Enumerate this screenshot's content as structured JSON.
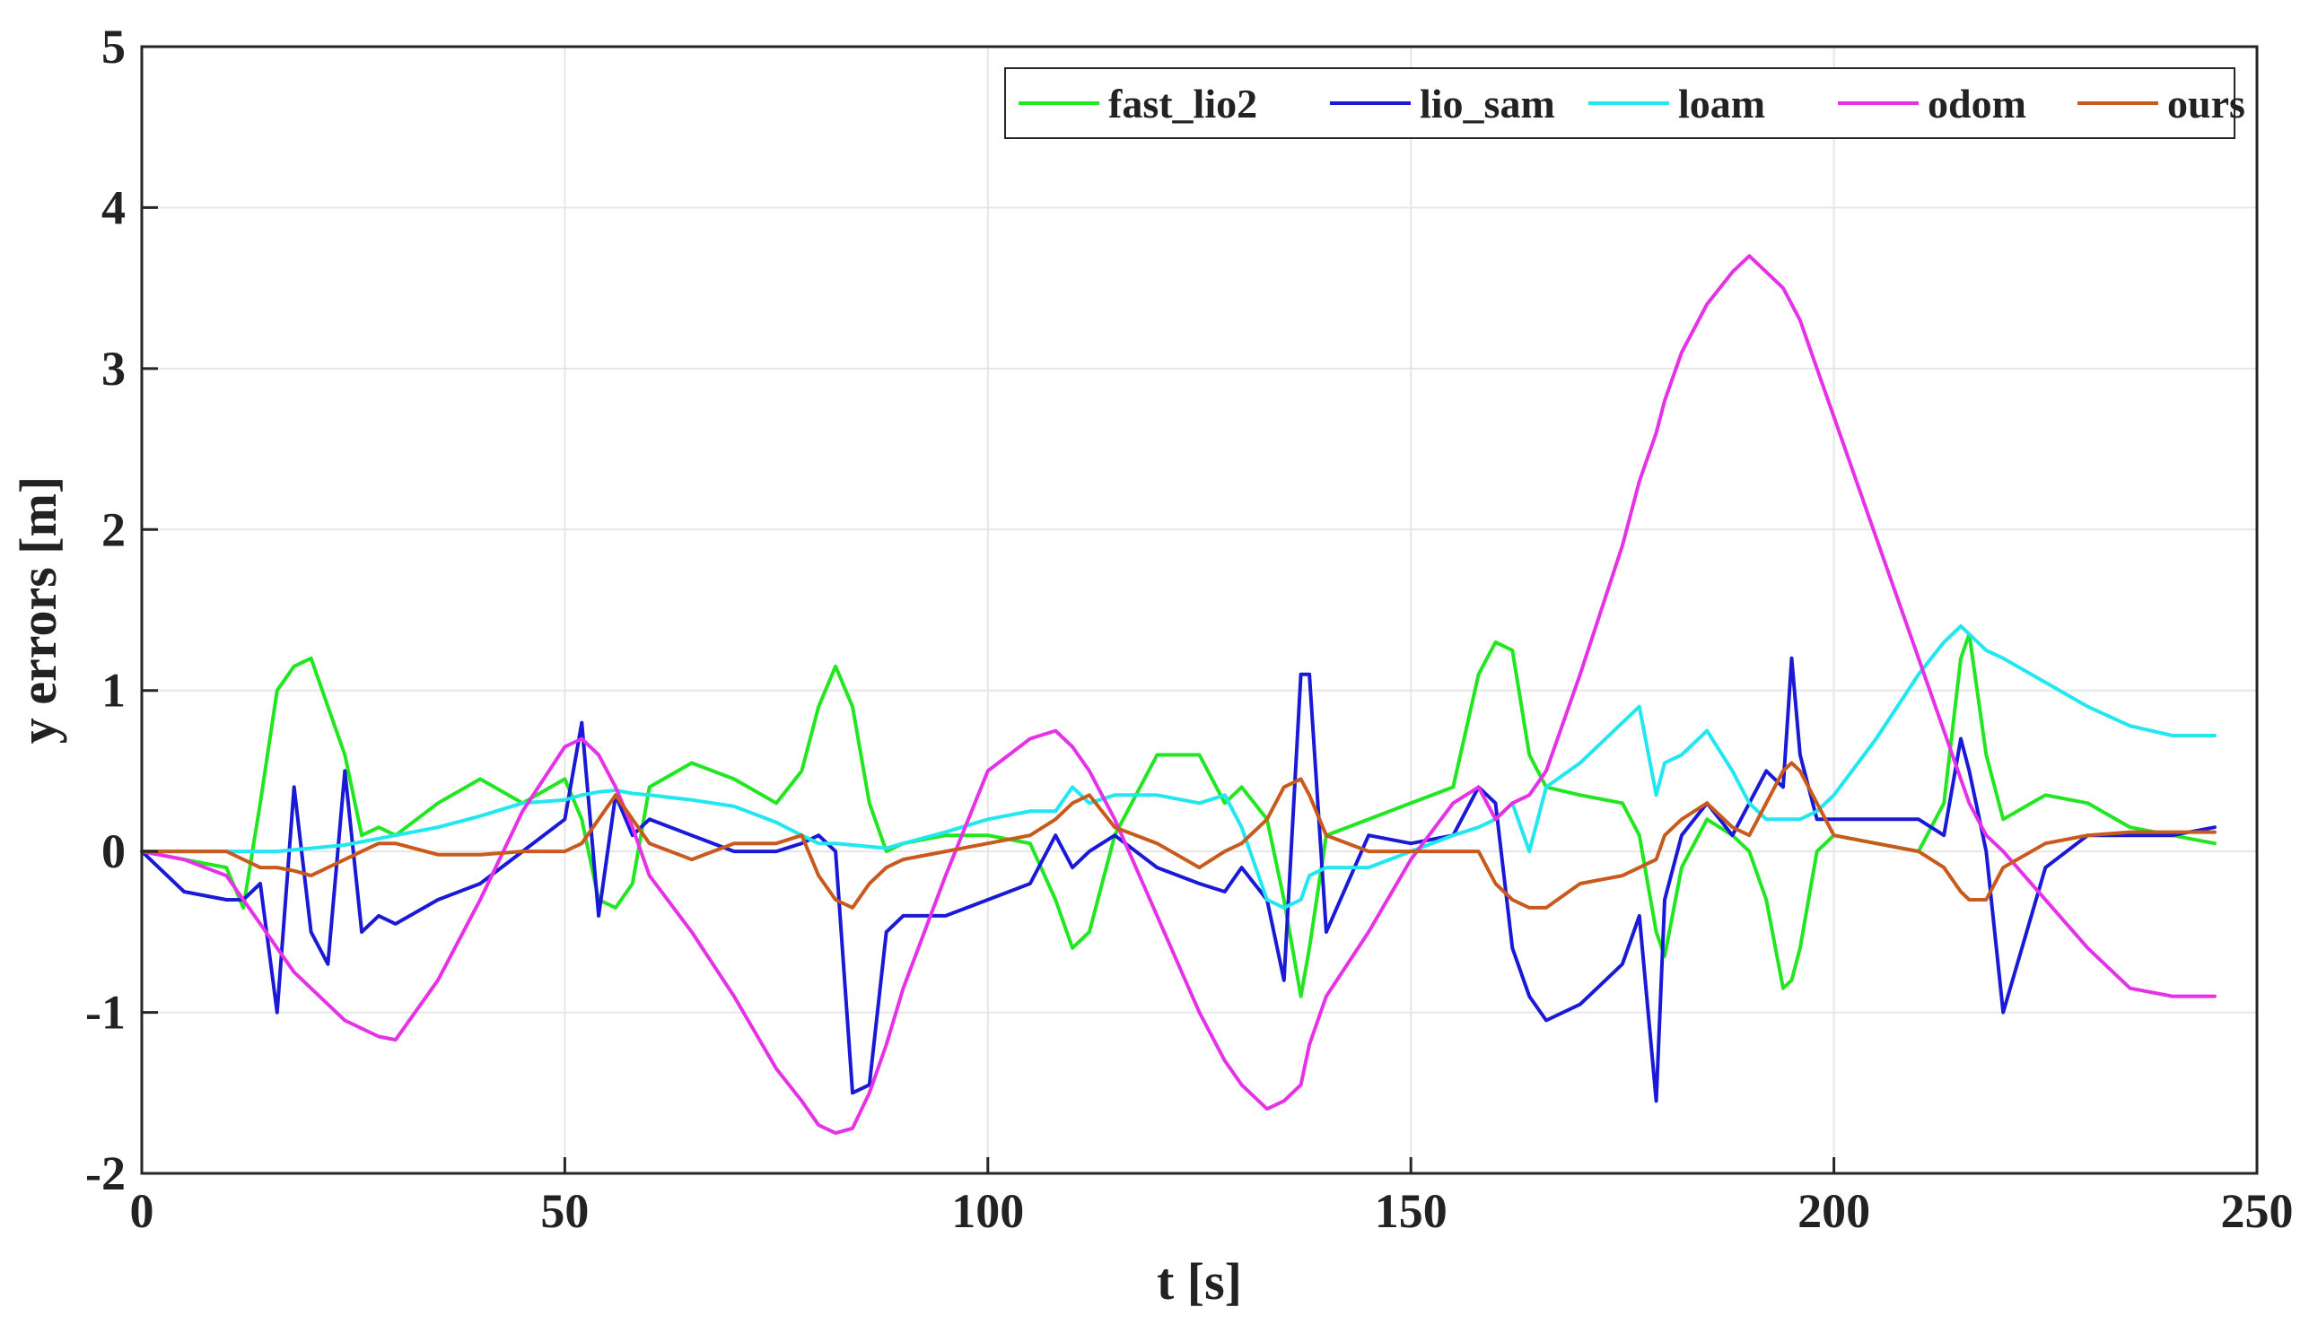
{
  "chart_data": {
    "type": "line",
    "title": "",
    "xlabel": "t [s]",
    "ylabel": "y errors [m]",
    "xlim": [
      0,
      250
    ],
    "ylim": [
      -2,
      5
    ],
    "xticks": [
      0,
      50,
      100,
      150,
      200,
      250
    ],
    "yticks": [
      -2,
      -1,
      0,
      1,
      2,
      3,
      4,
      5
    ],
    "xtick_labels": [
      "0",
      "50",
      "100",
      "150",
      "200",
      "250"
    ],
    "ytick_labels": [
      "-2",
      "-1",
      "0",
      "1",
      "2",
      "3",
      "4",
      "5"
    ],
    "grid": true,
    "legend_position": "top-right",
    "x": [
      0,
      5,
      10,
      12,
      14,
      16,
      18,
      20,
      22,
      24,
      26,
      28,
      30,
      35,
      40,
      45,
      50,
      52,
      54,
      56,
      58,
      60,
      65,
      70,
      75,
      78,
      80,
      82,
      84,
      86,
      88,
      90,
      95,
      100,
      105,
      108,
      110,
      112,
      115,
      120,
      125,
      128,
      130,
      133,
      135,
      137,
      138,
      140,
      145,
      150,
      155,
      158,
      160,
      162,
      164,
      166,
      170,
      175,
      177,
      179,
      180,
      182,
      185,
      188,
      190,
      192,
      194,
      195,
      196,
      198,
      200,
      205,
      210,
      213,
      215,
      216,
      218,
      220,
      225,
      230,
      235,
      240,
      245
    ],
    "series": [
      {
        "name": "fast_lio2",
        "color": "#22e622",
        "values": [
          0,
          -0.05,
          -0.1,
          -0.35,
          0.3,
          1.0,
          1.15,
          1.2,
          0.9,
          0.6,
          0.1,
          0.15,
          0.1,
          0.3,
          0.45,
          0.3,
          0.45,
          0.2,
          -0.3,
          -0.35,
          -0.2,
          0.4,
          0.55,
          0.45,
          0.3,
          0.5,
          0.9,
          1.15,
          0.9,
          0.3,
          0,
          0.05,
          0.1,
          0.1,
          0.05,
          -0.3,
          -0.6,
          -0.5,
          0.1,
          0.6,
          0.6,
          0.3,
          0.4,
          0.2,
          -0.3,
          -0.9,
          -0.6,
          0.1,
          0.2,
          0.3,
          0.4,
          1.1,
          1.3,
          1.25,
          0.6,
          0.4,
          0.35,
          0.3,
          0.1,
          -0.5,
          -0.65,
          -0.1,
          0.2,
          0.1,
          0,
          -0.3,
          -0.85,
          -0.8,
          -0.6,
          0,
          0.1,
          0.05,
          0,
          0.3,
          1.2,
          1.35,
          0.6,
          0.2,
          0.35,
          0.3,
          0.15,
          0.1,
          0.05
        ]
      },
      {
        "name": "lio_sam",
        "color": "#1a1ad6",
        "values": [
          0,
          -0.25,
          -0.3,
          -0.3,
          -0.2,
          -1.0,
          0.4,
          -0.5,
          -0.7,
          0.5,
          -0.5,
          -0.4,
          -0.45,
          -0.3,
          -0.2,
          0,
          0.2,
          0.8,
          -0.4,
          0.35,
          0.1,
          0.2,
          0.1,
          0,
          0,
          0.05,
          0.1,
          0,
          -1.5,
          -1.45,
          -0.5,
          -0.4,
          -0.4,
          -0.3,
          -0.2,
          0.1,
          -0.1,
          0,
          0.1,
          -0.1,
          -0.2,
          -0.25,
          -0.1,
          -0.3,
          -0.8,
          1.1,
          1.1,
          -0.5,
          0.1,
          0.05,
          0.1,
          0.4,
          0.3,
          -0.6,
          -0.9,
          -1.05,
          -0.95,
          -0.7,
          -0.4,
          -1.55,
          -0.3,
          0.1,
          0.3,
          0.1,
          0.3,
          0.5,
          0.4,
          1.2,
          0.6,
          0.2,
          0.2,
          0.2,
          0.2,
          0.1,
          0.7,
          0.5,
          0,
          -1.0,
          -0.1,
          0.1,
          0.1,
          0.1,
          0.15
        ]
      },
      {
        "name": "loam",
        "color": "#22e6f0",
        "values": [
          0,
          0,
          0,
          0,
          0,
          0,
          0.01,
          0.02,
          0.03,
          0.04,
          0.06,
          0.08,
          0.1,
          0.15,
          0.22,
          0.3,
          0.32,
          0.35,
          0.37,
          0.38,
          0.36,
          0.35,
          0.32,
          0.28,
          0.18,
          0.1,
          0.05,
          0.05,
          0.04,
          0.03,
          0.02,
          0.05,
          0.12,
          0.2,
          0.25,
          0.25,
          0.4,
          0.3,
          0.35,
          0.35,
          0.3,
          0.35,
          0.15,
          -0.3,
          -0.35,
          -0.3,
          -0.15,
          -0.1,
          -0.1,
          0,
          0.1,
          0.15,
          0.2,
          0.3,
          0,
          0.4,
          0.55,
          0.8,
          0.9,
          0.35,
          0.55,
          0.6,
          0.75,
          0.5,
          0.3,
          0.2,
          0.2,
          0.2,
          0.2,
          0.25,
          0.35,
          0.7,
          1.1,
          1.3,
          1.4,
          1.35,
          1.25,
          1.2,
          1.05,
          0.9,
          0.78,
          0.72,
          0.72
        ]
      },
      {
        "name": "odom",
        "color": "#e632e6",
        "values": [
          0,
          -0.05,
          -0.15,
          -0.3,
          -0.45,
          -0.6,
          -0.75,
          -0.85,
          -0.95,
          -1.05,
          -1.1,
          -1.15,
          -1.17,
          -0.8,
          -0.3,
          0.25,
          0.65,
          0.7,
          0.6,
          0.4,
          0.15,
          -0.15,
          -0.5,
          -0.9,
          -1.35,
          -1.55,
          -1.7,
          -1.75,
          -1.72,
          -1.5,
          -1.2,
          -0.85,
          -0.15,
          0.5,
          0.7,
          0.75,
          0.65,
          0.5,
          0.2,
          -0.4,
          -1.0,
          -1.3,
          -1.45,
          -1.6,
          -1.55,
          -1.45,
          -1.2,
          -0.9,
          -0.5,
          -0.05,
          0.3,
          0.4,
          0.2,
          0.3,
          0.35,
          0.5,
          1.1,
          1.9,
          2.3,
          2.6,
          2.8,
          3.1,
          3.4,
          3.6,
          3.7,
          3.6,
          3.5,
          3.4,
          3.3,
          3.0,
          2.7,
          1.95,
          1.2,
          0.75,
          0.45,
          0.3,
          0.1,
          0.0,
          -0.3,
          -0.6,
          -0.85,
          -0.9,
          -0.9
        ]
      },
      {
        "name": "ours",
        "color": "#c85a1e",
        "values": [
          0,
          0,
          0,
          -0.05,
          -0.1,
          -0.1,
          -0.12,
          -0.15,
          -0.1,
          -0.05,
          0,
          0.05,
          0.05,
          -0.02,
          -0.02,
          0,
          0,
          0.05,
          0.2,
          0.35,
          0.2,
          0.05,
          -0.05,
          0.05,
          0.05,
          0.1,
          -0.15,
          -0.3,
          -0.35,
          -0.2,
          -0.1,
          -0.05,
          0,
          0.05,
          0.1,
          0.2,
          0.3,
          0.35,
          0.15,
          0.05,
          -0.1,
          0,
          0.05,
          0.2,
          0.4,
          0.45,
          0.35,
          0.1,
          0,
          0,
          0,
          0,
          -0.2,
          -0.3,
          -0.35,
          -0.35,
          -0.2,
          -0.15,
          -0.1,
          -0.05,
          0.1,
          0.2,
          0.3,
          0.15,
          0.1,
          0.3,
          0.5,
          0.55,
          0.5,
          0.3,
          0.1,
          0.05,
          0,
          -0.1,
          -0.25,
          -0.3,
          -0.3,
          -0.1,
          0.05,
          0.1,
          0.12,
          0.12,
          0.12
        ]
      }
    ]
  }
}
